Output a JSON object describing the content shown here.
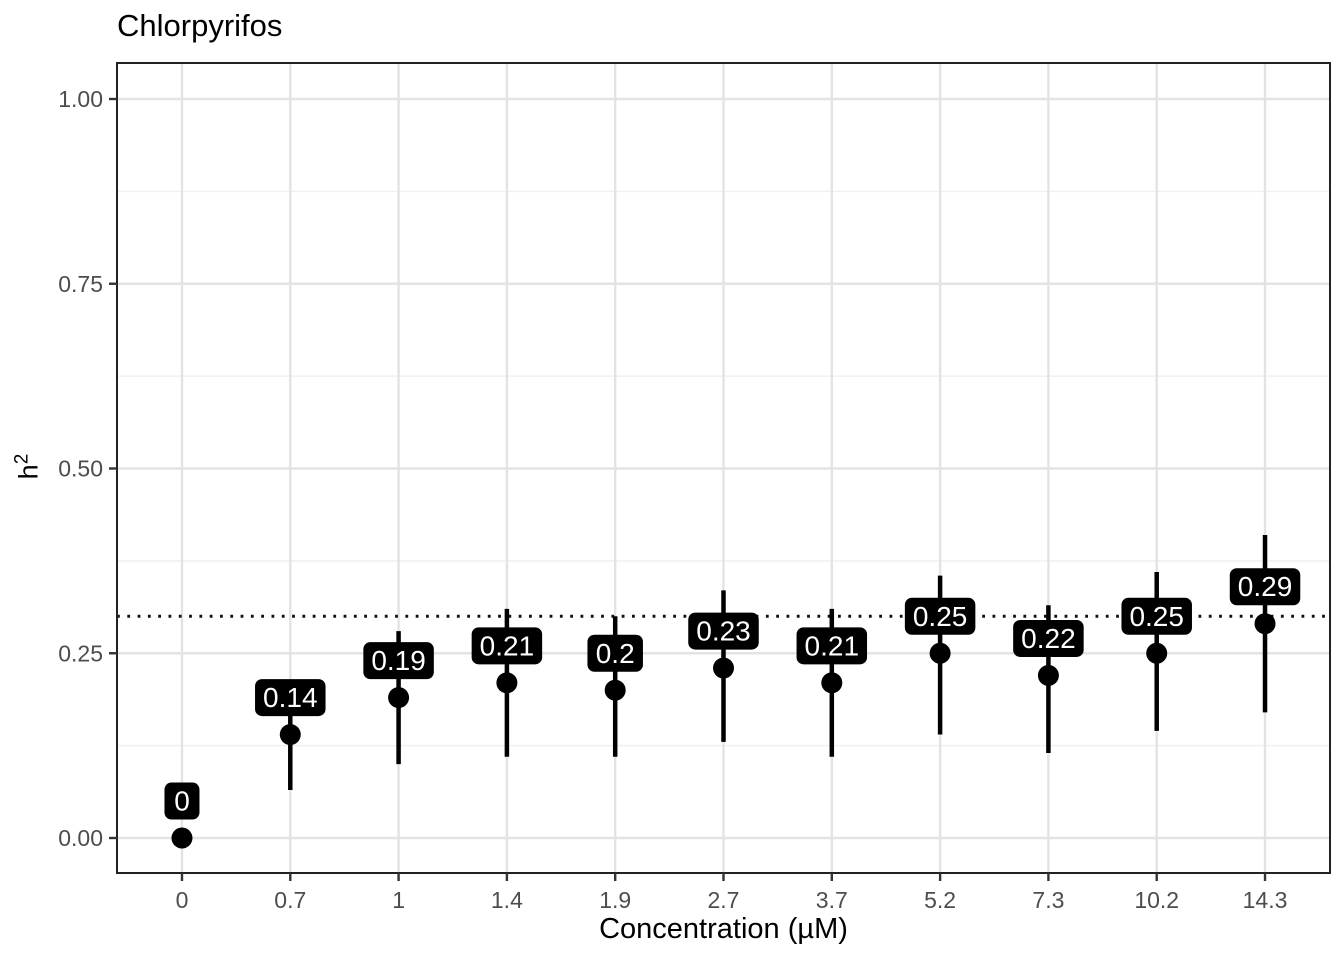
{
  "title": "Chlorpyrifos",
  "axes": {
    "x": {
      "title": "Concentration (µM)",
      "tick_labels": [
        "0",
        "0.7",
        "1",
        "1.4",
        "1.9",
        "2.7",
        "3.7",
        "5.2",
        "7.3",
        "10.2",
        "14.3"
      ]
    },
    "y": {
      "title_base": "h",
      "title_sup": "2",
      "ticks": [
        {
          "label": "0.00",
          "value": 0.0
        },
        {
          "label": "0.25",
          "value": 0.25
        },
        {
          "label": "0.50",
          "value": 0.5
        },
        {
          "label": "0.75",
          "value": 0.75
        },
        {
          "label": "1.00",
          "value": 1.0
        }
      ]
    }
  },
  "chart_data": {
    "type": "scatter",
    "title": "Chlorpyrifos",
    "xlabel": "Concentration (µM)",
    "ylabel": "h²",
    "categories": [
      "0",
      "0.7",
      "1",
      "1.4",
      "1.9",
      "2.7",
      "3.7",
      "5.2",
      "7.3",
      "10.2",
      "14.3"
    ],
    "points": [
      {
        "x": "0",
        "value": 0.0,
        "lower": 0.0,
        "upper": 0.0,
        "label": "0"
      },
      {
        "x": "0.7",
        "value": 0.14,
        "lower": 0.065,
        "upper": 0.21,
        "label": "0.14"
      },
      {
        "x": "1",
        "value": 0.19,
        "lower": 0.1,
        "upper": 0.28,
        "label": "0.19"
      },
      {
        "x": "1.4",
        "value": 0.21,
        "lower": 0.11,
        "upper": 0.31,
        "label": "0.21"
      },
      {
        "x": "1.9",
        "value": 0.2,
        "lower": 0.11,
        "upper": 0.3,
        "label": "0.2"
      },
      {
        "x": "2.7",
        "value": 0.23,
        "lower": 0.13,
        "upper": 0.335,
        "label": "0.23"
      },
      {
        "x": "3.7",
        "value": 0.21,
        "lower": 0.11,
        "upper": 0.31,
        "label": "0.21"
      },
      {
        "x": "5.2",
        "value": 0.25,
        "lower": 0.14,
        "upper": 0.355,
        "label": "0.25"
      },
      {
        "x": "7.3",
        "value": 0.22,
        "lower": 0.115,
        "upper": 0.315,
        "label": "0.22"
      },
      {
        "x": "10.2",
        "value": 0.25,
        "lower": 0.145,
        "upper": 0.36,
        "label": "0.25"
      },
      {
        "x": "14.3",
        "value": 0.29,
        "lower": 0.17,
        "upper": 0.41,
        "label": "0.29"
      }
    ],
    "reference_line_y": 0.3,
    "ylim": [
      -0.05,
      1.05
    ],
    "label_nudge_y": 0.05,
    "grid": true,
    "legend": false
  },
  "colors": {
    "point": "#000000",
    "error_bar": "#000000",
    "label_box_fill": "#000000",
    "label_text": "#ffffff",
    "reference_line": "#111111",
    "grid_major": "#e3e3e3",
    "grid_minor": "#f0f0f0",
    "panel_border": "#222222",
    "tick_mark": "#333333",
    "tick_label": "#4d4d4d",
    "background": "#ffffff"
  }
}
